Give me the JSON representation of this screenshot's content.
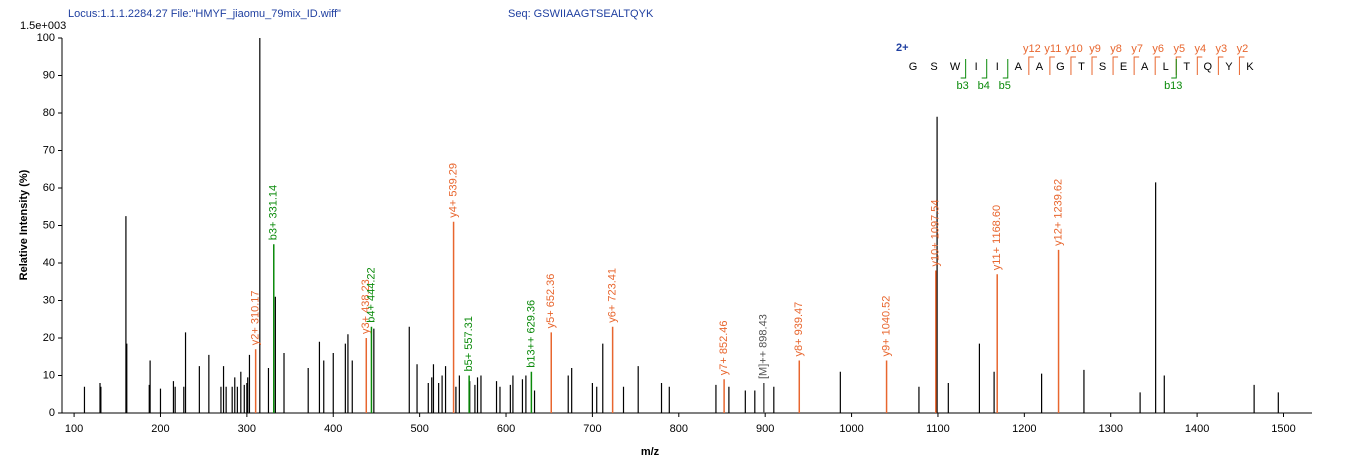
{
  "chart_data": {
    "type": "stem",
    "title": "Locus:1.1.1.2284.27 File:\"HMYF_jiaomu_79mix_ID.wiff\"",
    "subtitle": "Seq: GSWIIAAGTSEALTQYK",
    "y_scale_label": "1.5e+003",
    "x_label": "m/z",
    "y_label": "Relative   Intensity (%)",
    "xlim": [
      86,
      1533
    ],
    "ylim": [
      0,
      100
    ],
    "xticks": [
      100,
      200,
      300,
      400,
      500,
      600,
      700,
      800,
      900,
      1000,
      1100,
      1200,
      1300,
      1400,
      1500
    ],
    "yticks": [
      0,
      10,
      20,
      30,
      40,
      50,
      60,
      70,
      80,
      90,
      100
    ],
    "series": [
      {
        "color": "#000000",
        "x": [
          112,
          130,
          131,
          160,
          161,
          187,
          188,
          200,
          215,
          217,
          227,
          229,
          245,
          256,
          270,
          273,
          276,
          283,
          286,
          289,
          293,
          297,
          300,
          301,
          303,
          315,
          325,
          333,
          343,
          371,
          384,
          389,
          400,
          414,
          417,
          422,
          447,
          488,
          497,
          510,
          514,
          516,
          522,
          526,
          530,
          542,
          546,
          558,
          564,
          567,
          571,
          589,
          593,
          605,
          608,
          619,
          623,
          633,
          672,
          676,
          700,
          705,
          712,
          736,
          753,
          780,
          789,
          843,
          858,
          877,
          888,
          910,
          987,
          1078,
          1099,
          1112,
          1148,
          1165,
          1220,
          1269,
          1334,
          1352,
          1362,
          1466,
          1494
        ],
        "values": [
          7,
          8,
          7,
          52.5,
          18.5,
          7.5,
          14,
          6.5,
          8.5,
          7,
          7,
          21.5,
          12.5,
          15.5,
          7,
          12.5,
          7,
          7,
          9.5,
          7,
          11,
          7.5,
          8,
          9.5,
          15.5,
          100,
          12,
          31,
          16,
          12,
          19,
          14,
          16,
          18.5,
          21,
          14,
          22.5,
          23,
          13,
          8,
          9.5,
          13,
          8,
          10,
          12.5,
          7,
          10,
          8.5,
          7.5,
          9.5,
          10,
          8.5,
          7,
          7.5,
          10,
          9,
          10,
          6,
          10,
          12,
          8,
          7,
          18.5,
          7,
          12.5,
          8,
          7,
          7.5,
          7,
          6,
          6,
          7,
          11,
          7,
          79,
          8,
          18.5,
          11,
          10.5,
          11.5,
          5.5,
          61.5,
          10,
          7.5,
          5.5
        ]
      }
    ],
    "annotations": [
      {
        "x": 310.17,
        "value": 17,
        "label": "y2+ 310.17",
        "color": "#e8662e"
      },
      {
        "x": 331.14,
        "value": 45,
        "label": "b3+ 331.14",
        "color": "#0a8a0a"
      },
      {
        "x": 438.23,
        "value": 20,
        "label": "y3+ 438.23",
        "color": "#e8662e"
      },
      {
        "x": 444.22,
        "value": 23,
        "label": "b4+ 444.22",
        "color": "#0a8a0a"
      },
      {
        "x": 539.29,
        "value": 51,
        "label": "y4+ 539.29",
        "color": "#e8662e"
      },
      {
        "x": 557.31,
        "value": 10,
        "label": "b5+ 557.31",
        "color": "#0a8a0a"
      },
      {
        "x": 629.36,
        "value": 11,
        "label": "b13++ 629.36",
        "color": "#0a8a0a"
      },
      {
        "x": 652.36,
        "value": 21.5,
        "label": "y5+ 652.36",
        "color": "#e8662e"
      },
      {
        "x": 723.41,
        "value": 23,
        "label": "y6+ 723.41",
        "color": "#e8662e"
      },
      {
        "x": 852.46,
        "value": 9,
        "label": "y7+ 852.46",
        "color": "#e8662e"
      },
      {
        "x": 898.43,
        "value": 8,
        "label": "[M]++ 898.43",
        "color": "#555555"
      },
      {
        "x": 939.47,
        "value": 14,
        "label": "y8+ 939.47",
        "color": "#e8662e"
      },
      {
        "x": 1040.52,
        "value": 14,
        "label": "y9+ 1040.52",
        "color": "#e8662e"
      },
      {
        "x": 1097.54,
        "value": 38,
        "label": "y10+ 1097.54",
        "color": "#e8662e"
      },
      {
        "x": 1168.6,
        "value": 37,
        "label": "y11+ 1168.60",
        "color": "#e8662e"
      },
      {
        "x": 1239.62,
        "value": 43.5,
        "label": "y12+ 1239.62",
        "color": "#e8662e"
      }
    ]
  },
  "sequence": {
    "charge": "2+",
    "residues": [
      "G",
      "S",
      "W",
      "I",
      "I",
      "A",
      "A",
      "G",
      "T",
      "S",
      "E",
      "A",
      "L",
      "T",
      "Q",
      "Y",
      "K"
    ],
    "y_ions": [
      "y12",
      "y11",
      "y10",
      "y9",
      "y8",
      "y7",
      "y6",
      "y5",
      "y4",
      "y3",
      "y2"
    ],
    "b_ions": [
      "b3",
      "b4",
      "b5",
      "b13"
    ]
  }
}
